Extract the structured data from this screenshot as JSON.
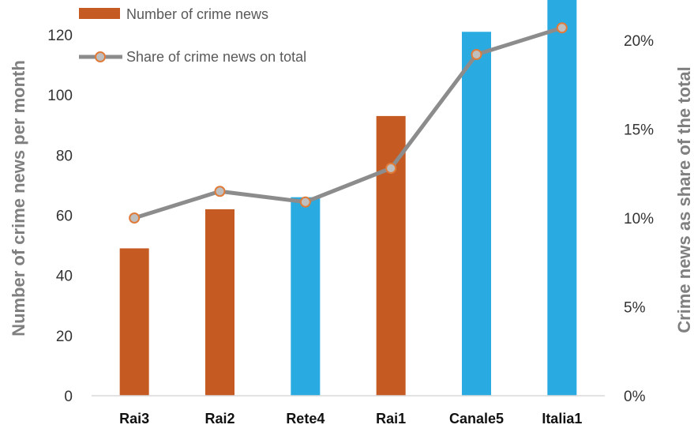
{
  "colors": {
    "bar_public": "#c55a22",
    "bar_private": "#29abe2",
    "line": "#8c8c8c",
    "marker_fill": "#bfbfbf",
    "marker_stroke": "#e07b39",
    "axis": "#d9d9d9"
  },
  "chart_data": {
    "type": "bar",
    "categories": [
      "Rai3",
      "Rai2",
      "Rete4",
      "Rai1",
      "Canale5",
      "Italia1"
    ],
    "series": [
      {
        "name": "Number of crime news",
        "type": "bar",
        "axis": "left",
        "values": [
          49,
          62,
          66,
          93,
          121,
          132
        ],
        "bar_colors": [
          "#c55a22",
          "#c55a22",
          "#29abe2",
          "#c55a22",
          "#29abe2",
          "#29abe2"
        ]
      },
      {
        "name": "Share of crime news on total",
        "type": "line",
        "axis": "right",
        "values": [
          0.1,
          0.115,
          0.109,
          0.128,
          0.192,
          0.207
        ]
      }
    ],
    "ylabel": "Number of crime news per month",
    "y2label": "Crime news as share of the total",
    "ylim": [
      0,
      130
    ],
    "y2lim": [
      0,
      0.22
    ],
    "yticks": [
      "0",
      "20",
      "40",
      "60",
      "80",
      "100",
      "120"
    ],
    "y2ticks": [
      "0%",
      "5%",
      "10%",
      "15%",
      "20%"
    ],
    "legend_position": "top-left",
    "grid": false
  }
}
